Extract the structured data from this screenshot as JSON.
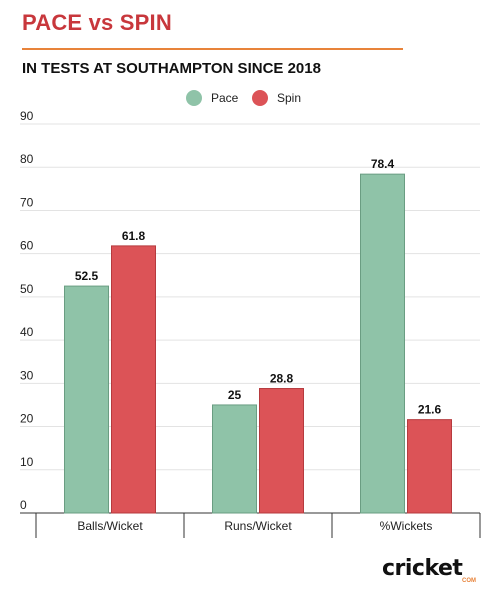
{
  "header": {
    "title": "PACE vs SPIN",
    "subtitle": "IN TESTS AT SOUTHAMPTON SINCE 2018"
  },
  "colors": {
    "title": "#c8373c",
    "rule": "#e8833a",
    "pace": "#8fc3a8",
    "pace_edge": "#6a9d82",
    "spin": "#dc5357",
    "spin_edge": "#b63a3e"
  },
  "brand": {
    "word": "cricket",
    "sub": "COM"
  },
  "chart_data": {
    "type": "bar",
    "categories": [
      "Balls/Wicket",
      "Runs/Wicket",
      "%Wickets"
    ],
    "series": [
      {
        "name": "Pace",
        "values": [
          52.5,
          25,
          78.4
        ],
        "value_labels": [
          "52.5",
          "25",
          "78.4"
        ]
      },
      {
        "name": "Spin",
        "values": [
          61.8,
          28.8,
          21.6
        ],
        "value_labels": [
          "61.8",
          "28.8",
          "21.6"
        ]
      }
    ],
    "ylim": [
      0,
      90
    ],
    "yticks": [
      0,
      10,
      20,
      30,
      40,
      50,
      60,
      70,
      80,
      90
    ],
    "grid": true,
    "legend_position": "top-center"
  }
}
